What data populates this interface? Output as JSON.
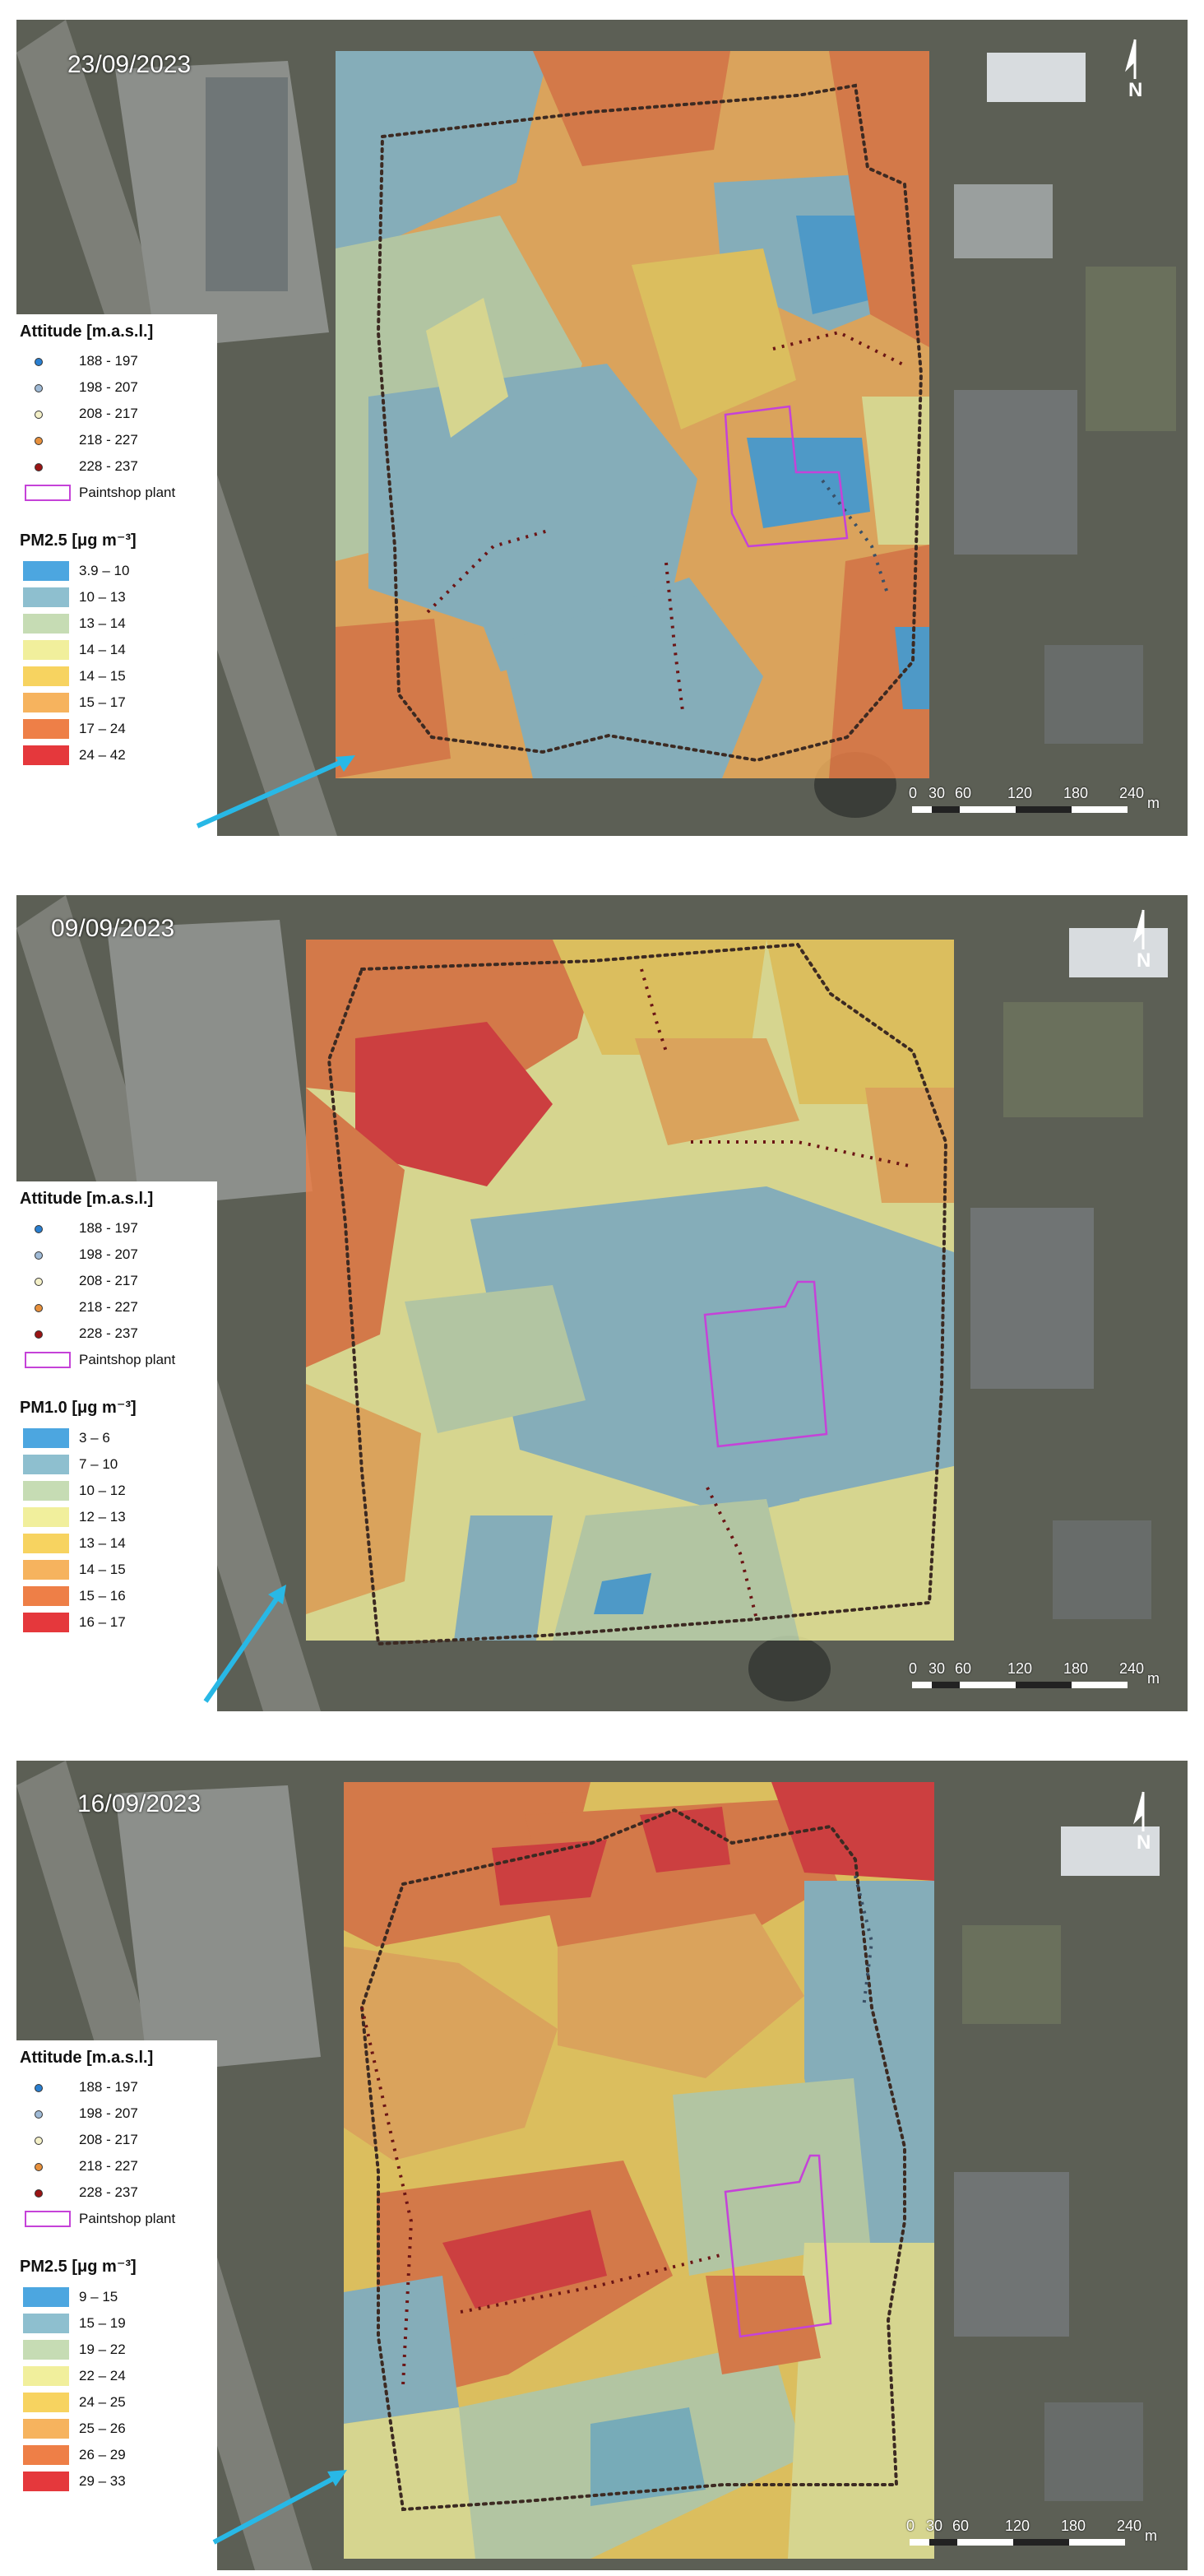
{
  "colors": {
    "plant_outline": "#c542d8",
    "arrow": "#28b8e6"
  },
  "altitude_legend": {
    "title": "Attitude [m.a.s.l.]",
    "classes": [
      {
        "label": "188 - 197",
        "color": "#2a7fd0"
      },
      {
        "label": "198 - 207",
        "color": "#9fbad6"
      },
      {
        "label": "208 - 217",
        "color": "#f4f0c8"
      },
      {
        "label": "218 - 227",
        "color": "#e7903c"
      },
      {
        "label": "228 - 237",
        "color": "#9a1414"
      }
    ],
    "plant_label": "Paintshop plant"
  },
  "scale": {
    "ticks": [
      "0",
      "30",
      "60",
      "120",
      "180",
      "240"
    ],
    "unit": "m"
  },
  "north_label": "N",
  "panels": [
    {
      "date": "23/09/2023",
      "pm_title": "PM2.5 [μg m⁻³]",
      "pm_classes": [
        {
          "label": "3.9 – 10",
          "color": "#4ca6e0"
        },
        {
          "label": "10 – 13",
          "color": "#8ebfcf"
        },
        {
          "label": "13 – 14",
          "color": "#c6dcb4"
        },
        {
          "label": "14 – 14",
          "color": "#f1ef9c"
        },
        {
          "label": "14 – 15",
          "color": "#f7d360"
        },
        {
          "label": "15 – 17",
          "color": "#f6b35e"
        },
        {
          "label": "17 – 24",
          "color": "#ee7f47"
        },
        {
          "label": "24 – 42",
          "color": "#e5383c"
        }
      ]
    },
    {
      "date": "09/09/2023",
      "pm_title": "PM1.0 [μg m⁻³]",
      "pm_classes": [
        {
          "label": "3 – 6",
          "color": "#4ca6e0"
        },
        {
          "label": "7 – 10",
          "color": "#8ebfcf"
        },
        {
          "label": "10 – 12",
          "color": "#c6dcb4"
        },
        {
          "label": "12 – 13",
          "color": "#f1ef9c"
        },
        {
          "label": "13 – 14",
          "color": "#f7d360"
        },
        {
          "label": "14 – 15",
          "color": "#f6b35e"
        },
        {
          "label": "15 – 16",
          "color": "#ee7f47"
        },
        {
          "label": "16 – 17",
          "color": "#e5383c"
        }
      ]
    },
    {
      "date": "16/09/2023",
      "pm_title": "PM2.5 [μg m⁻³]",
      "pm_classes": [
        {
          "label": "9 – 15",
          "color": "#4ca6e0"
        },
        {
          "label": "15 – 19",
          "color": "#8ebfcf"
        },
        {
          "label": "19 – 22",
          "color": "#c6dcb4"
        },
        {
          "label": "22 – 24",
          "color": "#f1ef9c"
        },
        {
          "label": "24 – 25",
          "color": "#f7d360"
        },
        {
          "label": "25 – 26",
          "color": "#f6b35e"
        },
        {
          "label": "26 – 29",
          "color": "#ee7f47"
        },
        {
          "label": "29 – 33",
          "color": "#e5383c"
        }
      ]
    }
  ]
}
